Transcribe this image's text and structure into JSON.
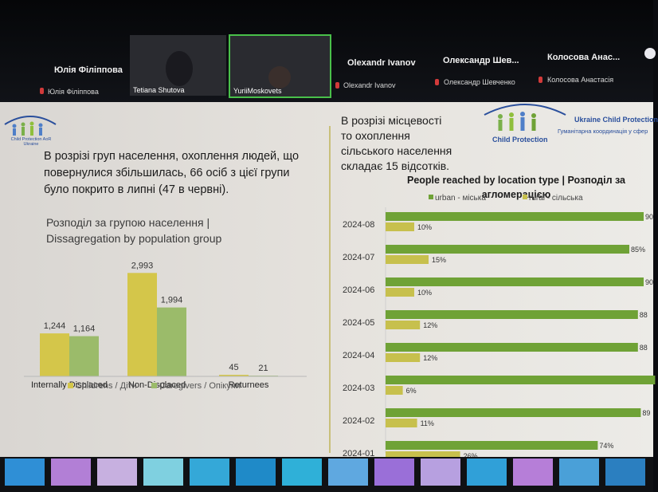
{
  "participants": [
    {
      "name": "Юлія Філіппова",
      "sub": "Юлія Філіппова"
    },
    {
      "name": "Tetiana Shutova"
    },
    {
      "name": "YuriiMoskovets"
    },
    {
      "name": "Olexandr Ivanov",
      "sub": "Olexandr Ivanov"
    },
    {
      "name": "Олександр Шев...",
      "sub": "Олександр Шевченко"
    },
    {
      "name": "Колосова Анас...",
      "sub": "Колосова Анастасія"
    }
  ],
  "slide": {
    "logo_left_text": "Child Protection AoR Ukraine",
    "left_paragraph": [
      "В розрізі груп населення, охоплення людей, що",
      "повернулися збільшилась, 66 осіб з цієї групи",
      "було покрито в липні (47 в червні)."
    ],
    "right_paragraph": [
      "В розрізі місцевості",
      "то охоплення",
      "сільського населення",
      "складає  15 відсотків."
    ],
    "logo_right_text": "Child Protection",
    "org_title": "Ukraine Child Protection",
    "org_sub": "Гуманітарна координація у сфер"
  },
  "chart_data": [
    {
      "type": "bar",
      "title": "Розподіл за групою населення | Dissagregation by population group",
      "categories": [
        "Internally Displaced",
        "Non-Displaced",
        "Returnees"
      ],
      "series": [
        {
          "name": "Childrens / Діти",
          "values": [
            1244,
            2993,
            45
          ],
          "labels": [
            "1,244",
            "2,993",
            "45"
          ]
        },
        {
          "name": "Caregivers / Опікуни",
          "values": [
            1164,
            1994,
            21
          ],
          "labels": [
            "1,164",
            "1,994",
            "21"
          ]
        }
      ],
      "colors": {
        "Childrens / Діти": "#d4c64a",
        "Caregivers / Опікуни": "#9bbb6a"
      },
      "ylim": [
        0,
        3000
      ],
      "legend": "bottom"
    },
    {
      "type": "bar",
      "orientation": "horizontal",
      "title": "People reached by location type | Розподіл за агломерацією",
      "categories": [
        "2024-08",
        "2024-07",
        "2024-06",
        "2024-05",
        "2024-04",
        "2024-03",
        "2024-02",
        "2024-01"
      ],
      "series": [
        {
          "name": "urban - міська",
          "values": [
            90,
            85,
            90,
            88,
            88,
            94,
            89,
            74
          ],
          "labels": [
            "90",
            "85%",
            "90",
            "88",
            "88",
            "",
            "89",
            "74%"
          ]
        },
        {
          "name": "rural - сільська",
          "values": [
            10,
            15,
            10,
            12,
            12,
            6,
            11,
            26
          ],
          "labels": [
            "10%",
            "15%",
            "10%",
            "12%",
            "12%",
            "6%",
            "11%",
            "26%"
          ]
        }
      ],
      "colors": {
        "urban - міська": "#6fa236",
        "rural - сільська": "#c7c04d"
      },
      "xlim": [
        0,
        100
      ],
      "legend": "top"
    }
  ],
  "taskbar_colors": [
    "#2f8fd6",
    "#b27fd6",
    "#c7b0e0",
    "#7fd0e0",
    "#34a8d8",
    "#1f8ac8",
    "#2fb0d8",
    "#5fa8e0",
    "#9a6fd8",
    "#b7a0e0",
    "#30a0d8",
    "#b67ed8",
    "#4aa0d8",
    "#2b7fc0"
  ]
}
